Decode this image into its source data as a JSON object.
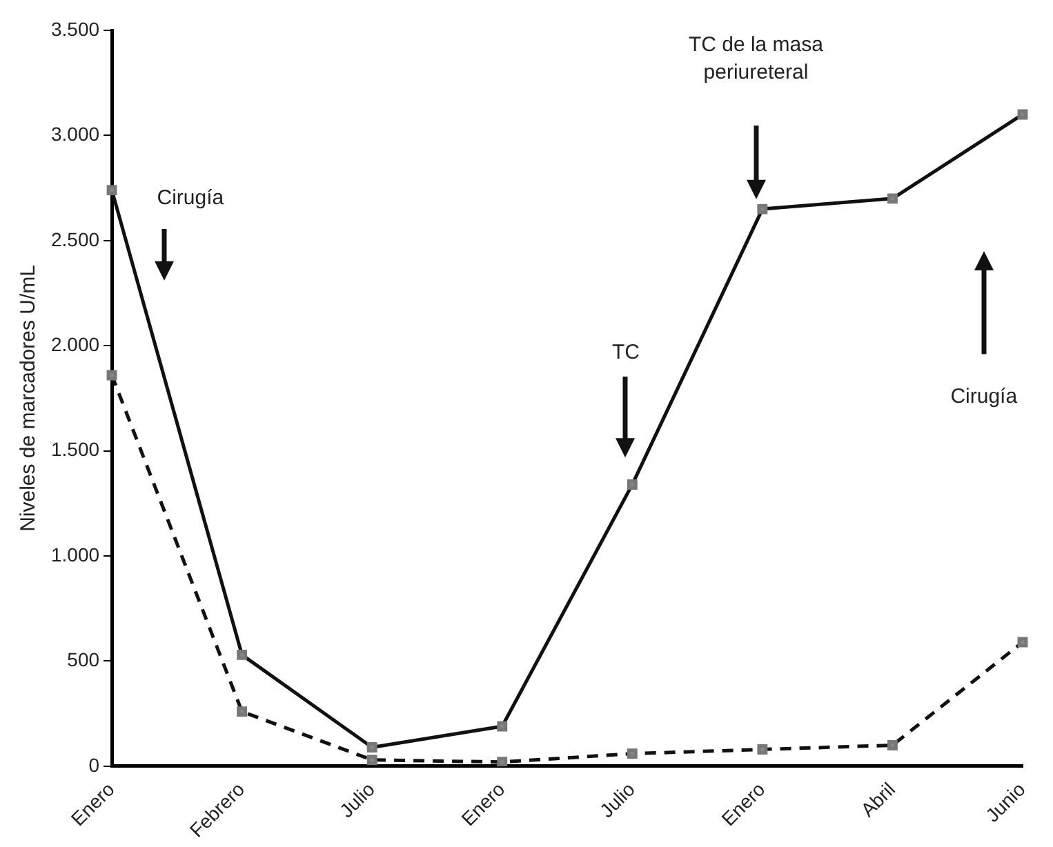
{
  "chart_data": {
    "type": "line",
    "ylabel": "Niveles de marcadores U/mL",
    "categories": [
      "Enero",
      "Febrero",
      "Julio",
      "Enero",
      "Julio",
      "Enero",
      "Abril",
      "Junio"
    ],
    "series": [
      {
        "color": "#111111",
        "line_style": "solid",
        "values": [
          2740,
          530,
          90,
          190,
          1340,
          2650,
          2700,
          3100
        ]
      },
      {
        "color": "#111111",
        "line_style": "dashed",
        "values": [
          1860,
          260,
          30,
          20,
          60,
          80,
          100,
          590
        ]
      }
    ],
    "ylim": [
      0,
      3500
    ],
    "yticks": [
      {
        "value": 0,
        "label": "0"
      },
      {
        "value": 500,
        "label": "500"
      },
      {
        "value": 1000,
        "label": "1.000"
      },
      {
        "value": 1500,
        "label": "1.500"
      },
      {
        "value": 2000,
        "label": "2.000"
      },
      {
        "value": 2500,
        "label": "2.500"
      },
      {
        "value": 3000,
        "label": "3.000"
      },
      {
        "value": 3500,
        "label": "3.500"
      }
    ],
    "marker": "square",
    "grid": false,
    "legend": false,
    "annotations": [
      "Cirugía",
      "TC",
      "TC de la masa periureteral",
      "Cirugía"
    ]
  }
}
